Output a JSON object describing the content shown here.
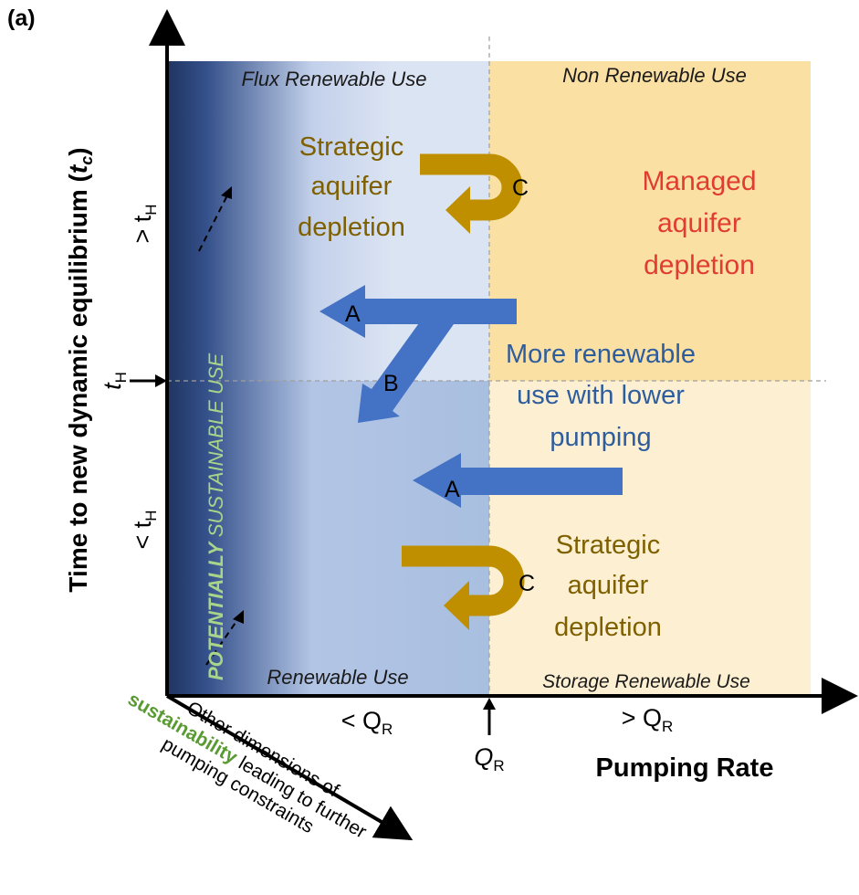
{
  "panel_label": "(a)",
  "y_axis": {
    "title": "Time to new dynamic equilibrium",
    "title_symbol": "t",
    "title_symbol_sub": "c",
    "tick_greater": "> t",
    "tick_greater_sub": "H",
    "tick_mid": "t",
    "tick_mid_sub": "H",
    "tick_less": "< t",
    "tick_less_sub": "H"
  },
  "x_axis": {
    "title": "Pumping Rate",
    "tick_less": "< Q",
    "tick_less_sub": "R",
    "tick_mid": "Q",
    "tick_mid_sub": "R",
    "tick_greater": "> Q",
    "tick_greater_sub": "R"
  },
  "z_axis": {
    "line1": "Other dimensions of",
    "line2_highlight": "sustainability",
    "line2_rest": " leading to further",
    "line3": "pumping constraints"
  },
  "regions": {
    "flux_renewable": "Flux Renewable Use",
    "non_renewable": "Non Renewable Use",
    "renewable": "Renewable Use",
    "storage_renewable": "Storage Renewable Use",
    "potentially_sustainable_a": "POTENTIALLY ",
    "potentially_sustainable_b": "SUSTAINABLE USE"
  },
  "annotations": {
    "strategic_top": [
      "Strategic",
      "aquifer",
      "depletion"
    ],
    "strategic_bottom": [
      "Strategic",
      "aquifer",
      "depletion"
    ],
    "managed": [
      "Managed",
      "aquifer",
      "depletion"
    ],
    "more_renewable": [
      "More renewable",
      "use with lower",
      "pumping"
    ]
  },
  "arrow_labels": {
    "a_top": "A",
    "b": "B",
    "a_bottom": "A",
    "c_top": "C",
    "c_bottom": "C"
  },
  "colors": {
    "dark_navy": "#1f3560",
    "light_blue": "#dbe4f3",
    "mid_blue": "#a9bfe0",
    "gold": "#fbe0a3",
    "light_gold": "#fdf0d2",
    "arrow_blue": "#4472c4",
    "arrow_gold": "#bf8f00",
    "text_brown": "#7f6000",
    "text_red": "#e03c31",
    "text_blue": "#2e5d9e",
    "text_green": "#5a9a32"
  }
}
